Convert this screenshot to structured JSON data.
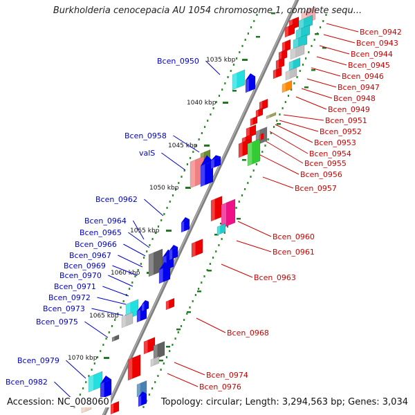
{
  "title": "Burkholderia cenocepacia AU 1054 chromosome 1, complete sequ...",
  "footer": {
    "accession": "Accession: NC_008060",
    "summary": "Topology: circular; Length: 3,294,563 bp; Genes: 3,034"
  },
  "colors": {
    "forward_label": "#0000cc",
    "reverse_label": "#cc0000",
    "backbone": "#7a7a7a",
    "tick_dots": "#2e8b2e"
  },
  "kbp_ticks": [
    "1035 kbp",
    "1040 kbp",
    "1045 kbp",
    "1050 kbp",
    "1055 kbp",
    "1060 kbp",
    "1065 kbp",
    "1070 kbp"
  ],
  "forward_genes": [
    "Bcen_0950",
    "Bcen_0958",
    "valS",
    "Bcen_0962",
    "Bcen_0964",
    "Bcen_0965",
    "Bcen_0966",
    "Bcen_0967",
    "Bcen_0969",
    "Bcen_0970",
    "Bcen_0971",
    "Bcen_0972",
    "Bcen_0973",
    "Bcen_0975",
    "Bcen_0979",
    "Bcen_0982"
  ],
  "reverse_genes": [
    "Bcen_0942",
    "Bcen_0943",
    "Bcen_0944",
    "Bcen_0945",
    "Bcen_0946",
    "Bcen_0947",
    "Bcen_0948",
    "Bcen_0949",
    "Bcen_0951",
    "Bcen_0952",
    "Bcen_0953",
    "Bcen_0954",
    "Bcen_0955",
    "Bcen_0956",
    "Bcen_0957",
    "Bcen_0960",
    "Bcen_0961",
    "Bcen_0963",
    "Bcen_0968",
    "Bcen_0974",
    "Bcen_0976"
  ]
}
